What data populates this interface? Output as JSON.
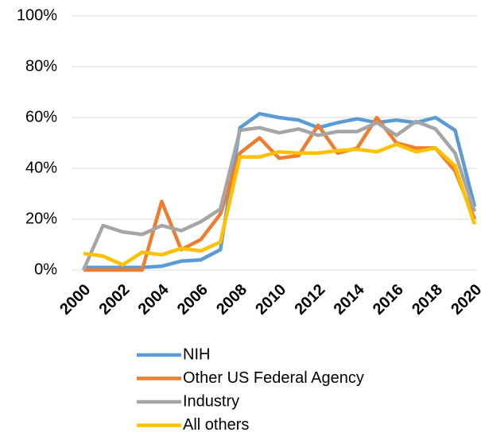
{
  "chart_data": {
    "type": "line",
    "x": [
      2000,
      2001,
      2002,
      2003,
      2004,
      2005,
      2006,
      2007,
      2008,
      2009,
      2010,
      2011,
      2012,
      2013,
      2014,
      2015,
      2016,
      2017,
      2018,
      2019,
      2020
    ],
    "xlim": [
      2000,
      2020
    ],
    "xticks": [
      2000,
      2002,
      2004,
      2006,
      2008,
      2010,
      2012,
      2014,
      2016,
      2018,
      2020
    ],
    "ylim": [
      0,
      100
    ],
    "yticks": [
      {
        "value": 0,
        "label": "0%"
      },
      {
        "value": 20,
        "label": "20%"
      },
      {
        "value": 40,
        "label": "40%"
      },
      {
        "value": 60,
        "label": "60%"
      },
      {
        "value": 80,
        "label": "80%"
      },
      {
        "value": 100,
        "label": "100%"
      }
    ],
    "grid": true,
    "legend": "bottom",
    "series": [
      {
        "name": "NIH",
        "color": "#5b9bd5",
        "values": [
          1,
          1,
          1,
          1,
          1.5,
          3.5,
          4,
          8,
          56,
          61.5,
          60,
          59,
          56,
          58,
          59.5,
          58,
          59,
          58,
          60,
          55,
          25
        ]
      },
      {
        "name": "Other US Federal Agency",
        "color": "#ed7d31",
        "values": [
          0,
          0,
          0,
          0,
          27,
          8,
          12,
          22,
          46,
          52,
          44,
          45,
          57,
          46,
          48,
          60,
          50,
          48,
          48,
          39,
          20
        ]
      },
      {
        "name": "Industry",
        "color": "#a5a5a5",
        "values": [
          0,
          17.5,
          15,
          14,
          17.5,
          15.5,
          19,
          24,
          55,
          56,
          54,
          55.5,
          53,
          54.5,
          54.5,
          58,
          53,
          58.5,
          55.5,
          46,
          23
        ]
      },
      {
        "name": "All others",
        "color": "#ffc000",
        "values": [
          6.5,
          5.5,
          2,
          7,
          6,
          8.5,
          7.5,
          11,
          44.5,
          44.5,
          46.5,
          46,
          46,
          47,
          47.5,
          46.5,
          49.5,
          46.5,
          48,
          41,
          18
        ]
      }
    ]
  }
}
